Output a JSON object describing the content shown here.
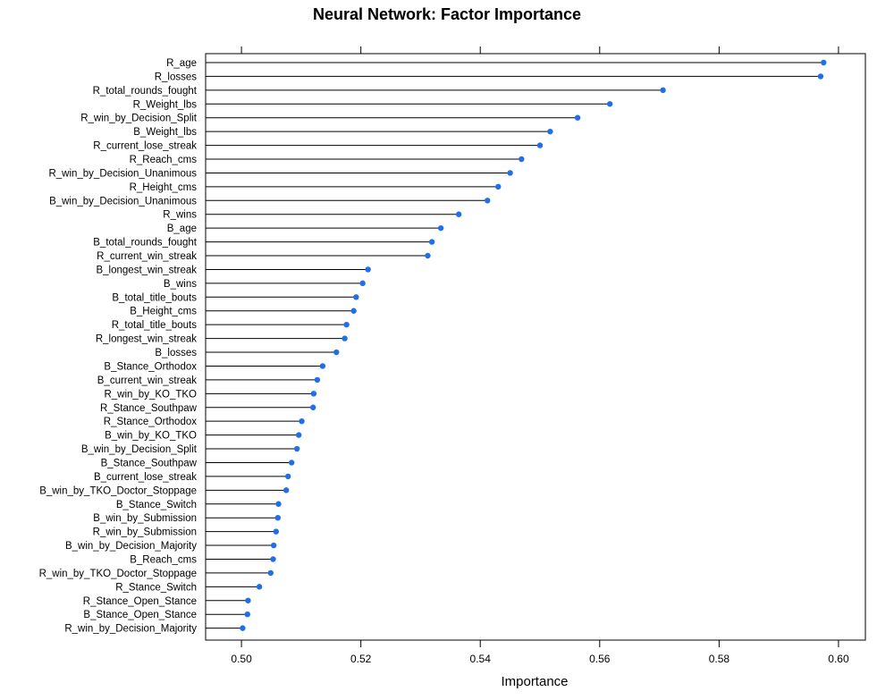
{
  "chart_data": {
    "type": "dot",
    "title": "Neural Network: Factor Importance",
    "xlabel": "Importance",
    "ylabel": "",
    "xlim": [
      0.494,
      0.6045
    ],
    "xticks": [
      "0.50",
      "0.52",
      "0.54",
      "0.56",
      "0.58",
      "0.60"
    ],
    "xtick_values": [
      0.5,
      0.52,
      0.54,
      0.56,
      0.58,
      0.6
    ],
    "grid": false,
    "marker_color": "#1f6fe8",
    "categories": [
      "R_age",
      "R_losses",
      "R_total_rounds_fought",
      "R_Weight_lbs",
      "R_win_by_Decision_Split",
      "B_Weight_lbs",
      "R_current_lose_streak",
      "R_Reach_cms",
      "R_win_by_Decision_Unanimous",
      "R_Height_cms",
      "B_win_by_Decision_Unanimous",
      "R_wins",
      "B_age",
      "B_total_rounds_fought",
      "R_current_win_streak",
      "B_longest_win_streak",
      "B_wins",
      "B_total_title_bouts",
      "B_Height_cms",
      "R_total_title_bouts",
      "R_longest_win_streak",
      "B_losses",
      "B_Stance_Orthodox",
      "B_current_win_streak",
      "R_win_by_KO_TKO",
      "R_Stance_Southpaw",
      "R_Stance_Orthodox",
      "B_win_by_KO_TKO",
      "B_win_by_Decision_Split",
      "B_Stance_Southpaw",
      "B_current_lose_streak",
      "B_win_by_TKO_Doctor_Stoppage",
      "B_Stance_Switch",
      "B_win_by_Submission",
      "R_win_by_Submission",
      "B_win_by_Decision_Majority",
      "B_Reach_cms",
      "R_win_by_TKO_Doctor_Stoppage",
      "R_Stance_Switch",
      "R_Stance_Open_Stance",
      "B_Stance_Open_Stance",
      "R_win_by_Decision_Majority"
    ],
    "values": [
      0.5975,
      0.597,
      0.5706,
      0.5617,
      0.5563,
      0.5517,
      0.55,
      0.5469,
      0.545,
      0.543,
      0.5412,
      0.5364,
      0.5334,
      0.5319,
      0.5312,
      0.5212,
      0.5203,
      0.5192,
      0.5188,
      0.5176,
      0.5173,
      0.5159,
      0.5136,
      0.5127,
      0.5121,
      0.512,
      0.5101,
      0.5096,
      0.5093,
      0.5084,
      0.5078,
      0.5075,
      0.5062,
      0.5061,
      0.5058,
      0.5054,
      0.5053,
      0.5049,
      0.503,
      0.5011,
      0.501,
      0.5002
    ]
  }
}
